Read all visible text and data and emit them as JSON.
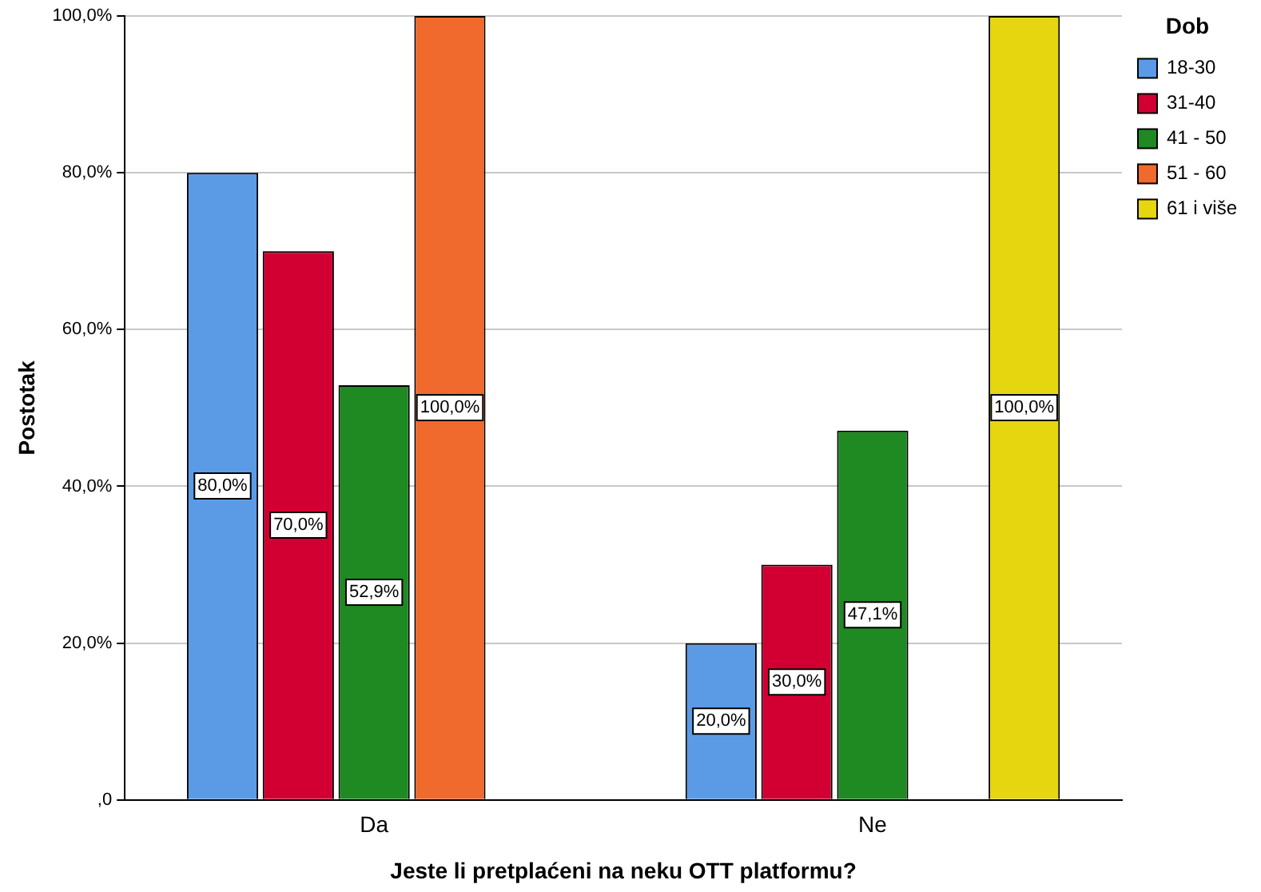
{
  "chart_data": {
    "type": "bar",
    "xlabel": "Jeste li pretplaćeni na neku OTT platformu?",
    "ylabel": "Postotak",
    "legend_title": "Dob",
    "categories": [
      "Da",
      "Ne"
    ],
    "series": [
      {
        "name": "18-30",
        "color": "#5b9be6",
        "values": [
          80,
          20
        ],
        "value_labels": [
          "80,0%",
          "20,0%"
        ]
      },
      {
        "name": "31-40",
        "color": "#d20032",
        "values": [
          70,
          30
        ],
        "value_labels": [
          "70,0%",
          "30,0%"
        ]
      },
      {
        "name": "41 - 50",
        "color": "#1f8a22",
        "values": [
          52.9,
          47.1
        ],
        "value_labels": [
          "52,9%",
          "47,1%"
        ]
      },
      {
        "name": "51 - 60",
        "color": "#f0692d",
        "values": [
          100,
          null
        ],
        "value_labels": [
          "100,0%",
          null
        ]
      },
      {
        "name": "61 i više",
        "color": "#e6d60f",
        "values": [
          null,
          100
        ],
        "value_labels": [
          null,
          "100,0%"
        ]
      }
    ],
    "ylim": [
      0,
      100
    ],
    "yticks": [
      {
        "value": 0,
        "label": ",0"
      },
      {
        "value": 20,
        "label": "20,0%"
      },
      {
        "value": 40,
        "label": "40,0%"
      },
      {
        "value": 60,
        "label": "60,0%"
      },
      {
        "value": 80,
        "label": "80,0%"
      },
      {
        "value": 100,
        "label": "100,0%"
      }
    ],
    "grid": "y",
    "legend": "top right"
  }
}
